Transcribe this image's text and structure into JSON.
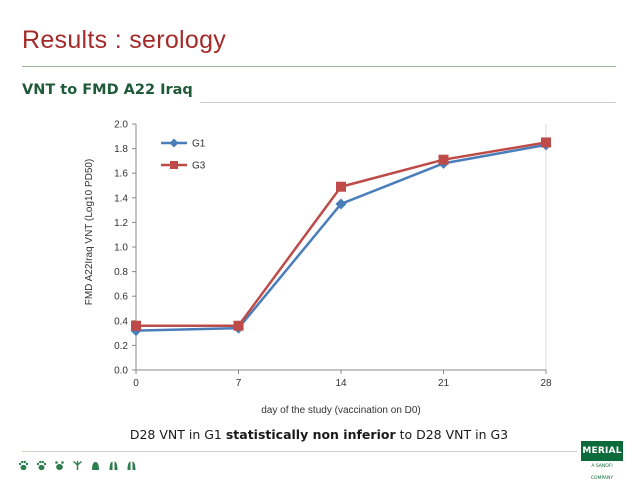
{
  "header": {
    "title": "Results : serology",
    "subtitle": "VNT to FMD A22 Iraq"
  },
  "footnote": {
    "prefix": "D28 VNT in G1 ",
    "bold": "statistically non inferior",
    "suffix": " to D28 VNT in G3"
  },
  "logo": {
    "name": "MERIAL",
    "tagline": "A SANOFI COMPANY"
  },
  "icons": [
    "paw-icon",
    "paw-icon",
    "paw-icon",
    "bird-icon",
    "cow-icon",
    "pig-icon",
    "sheep-icon"
  ],
  "chart_data": {
    "type": "line",
    "title": "",
    "xlabel": "day of the study (vaccination on D0)",
    "ylabel": "FMD A22Iraq VNT (Log10 PD50)",
    "x": [
      0,
      7,
      14,
      21,
      28
    ],
    "xticks": [
      "0",
      "7",
      "14",
      "21",
      "28"
    ],
    "xlim": [
      0,
      28
    ],
    "yticks": [
      "0.0",
      "0.2",
      "0.4",
      "0.6",
      "0.8",
      "1.0",
      "1.2",
      "1.4",
      "1.6",
      "1.8",
      "2.0"
    ],
    "ylim": [
      0,
      2.0
    ],
    "grid": false,
    "legend_position": "top-left",
    "series": [
      {
        "name": "G1",
        "marker": "diamond",
        "color": "#4a7ebb",
        "values": [
          0.32,
          0.34,
          1.35,
          1.68,
          1.83
        ]
      },
      {
        "name": "G3",
        "marker": "square",
        "color": "#be4b48",
        "values": [
          0.36,
          0.36,
          1.49,
          1.71,
          1.85
        ]
      }
    ]
  }
}
